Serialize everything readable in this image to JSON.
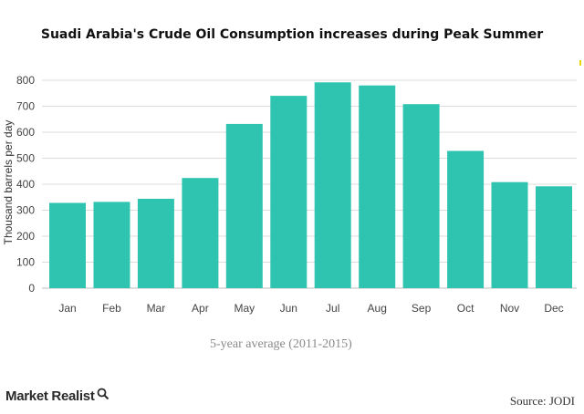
{
  "chart_data": {
    "type": "bar",
    "title": "Suadi Arabia's Crude Oil Consumption increases during Peak Summer",
    "xlabel": "",
    "ylabel": "Thousand barrels per day",
    "categories": [
      "Jan",
      "Feb",
      "Mar",
      "Apr",
      "May",
      "Jun",
      "Jul",
      "Aug",
      "Sep",
      "Oct",
      "Nov",
      "Dec"
    ],
    "values": [
      328,
      332,
      344,
      424,
      632,
      740,
      792,
      780,
      708,
      528,
      408,
      392
    ],
    "ylim": [
      0,
      800
    ],
    "yticks": [
      0,
      100,
      200,
      300,
      400,
      500,
      600,
      700,
      800
    ],
    "grid": true,
    "bar_color": "#2ec4b0",
    "caption": "5-year average (2011-2015)"
  },
  "footer": {
    "brand": "Market Realist",
    "brand_icon": "magnifier-icon",
    "source": "Source: JODI"
  }
}
